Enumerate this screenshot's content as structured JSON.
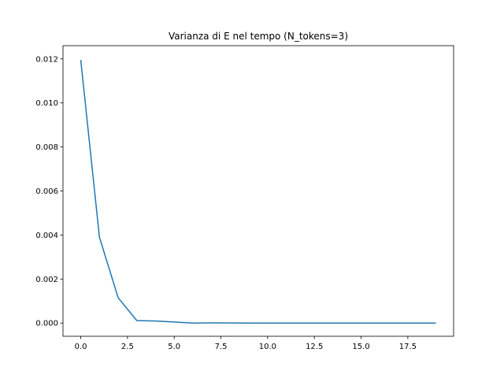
{
  "chart_data": {
    "type": "line",
    "title": "Varianza di E nel tempo (N_tokens=3)",
    "xlabel": "",
    "ylabel": "",
    "xlim": [
      -0.95,
      19.95
    ],
    "ylim": [
      -0.0006,
      0.0126
    ],
    "xticks": [
      0.0,
      2.5,
      5.0,
      7.5,
      10.0,
      12.5,
      15.0,
      17.5
    ],
    "xtick_labels": [
      "0.0",
      "2.5",
      "5.0",
      "7.5",
      "10.0",
      "12.5",
      "15.0",
      "17.5"
    ],
    "yticks": [
      0.0,
      0.002,
      0.004,
      0.006,
      0.008,
      0.01,
      0.012
    ],
    "ytick_labels": [
      "0.000",
      "0.002",
      "0.004",
      "0.006",
      "0.008",
      "0.010",
      "0.012"
    ],
    "grid": false,
    "line_color": "#1f77b4",
    "series": [
      {
        "x": [
          0,
          1,
          2,
          3,
          4,
          5,
          6,
          7,
          8,
          9,
          10,
          11,
          12,
          13,
          14,
          15,
          16,
          17,
          18,
          19
        ],
        "values": [
          0.01195,
          0.0039,
          0.00115,
          0.00011,
          9.5e-05,
          5e-05,
          0.0,
          1e-05,
          5e-06,
          0.0,
          0.0,
          0.0,
          0.0,
          0.0,
          0.0,
          0.0,
          0.0,
          0.0,
          0.0,
          0.0
        ]
      }
    ]
  }
}
